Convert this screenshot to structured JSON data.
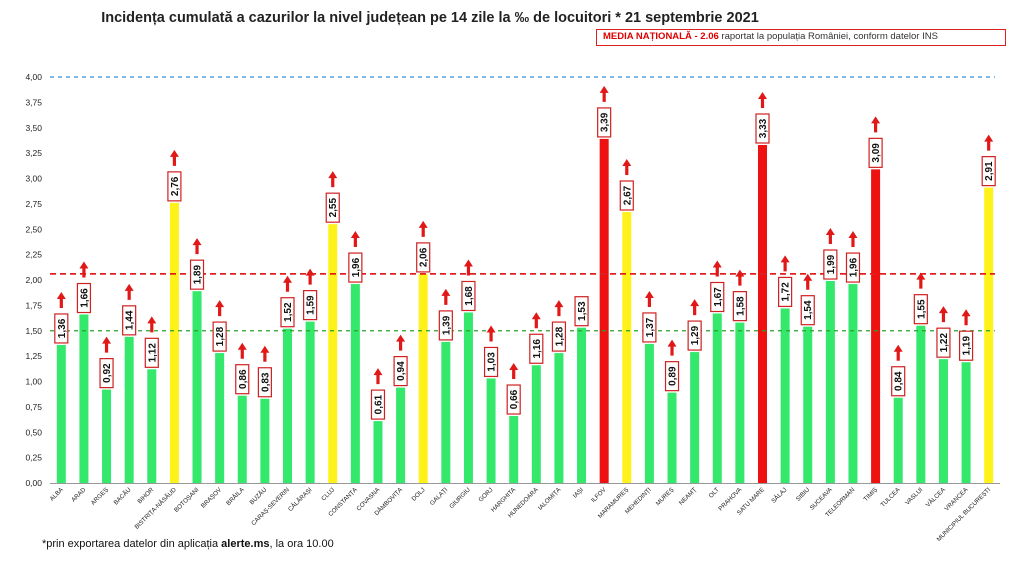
{
  "title": "Incidența cumulată a cazurilor la nivel județean pe 14 zile la ‰ de locuitori * 21 septembrie 2021",
  "national": {
    "label": "MEDIA NAȚIONALĂ",
    "value_text": "- 2.06",
    "description": "raportat la populația României, conform datelor INS"
  },
  "footnote": {
    "prefix": "*prin exportarea datelor din aplicația ",
    "source": "alerte.ms",
    "suffix": ", la ora 10.00"
  },
  "colors": {
    "green": "#33e86b",
    "yellow": "#fff21a",
    "red": "#ee1111",
    "arrow": "#e01818",
    "national_line": "#e02020",
    "threshold_line": "#28a428",
    "limit_line": "#3a8fd8"
  },
  "chart_data": {
    "type": "bar",
    "ylim": [
      0,
      4
    ],
    "yticks": [
      "0,00",
      "0,25",
      "0,50",
      "0,75",
      "1,00",
      "1,25",
      "1,50",
      "1,75",
      "2,00",
      "2,25",
      "2,50",
      "2,75",
      "3,00",
      "3,25",
      "3,50",
      "3,75",
      "4,00"
    ],
    "reference_lines": [
      {
        "value": 4.0,
        "color": "#3a8fd8"
      },
      {
        "value": 2.06,
        "color": "#e02020"
      },
      {
        "value": 1.5,
        "color": "#28a428"
      }
    ],
    "categories": [
      "ALBA",
      "ARAD",
      "ARGEȘ",
      "BACĂU",
      "BIHOR",
      "BISTRIȚA-NĂSĂUD",
      "BOTOȘANI",
      "BRAȘOV",
      "BRĂILA",
      "BUZĂU",
      "CARAȘ-SEVERIN",
      "CĂLĂRAȘI",
      "CLUJ",
      "CONSTANȚA",
      "COVASNA",
      "DÂMBOVIȚA",
      "DOLJ",
      "GALAȚI",
      "GIURGIU",
      "GORJ",
      "HARGHITA",
      "HUNEDOARA",
      "IALOMIȚA",
      "IAȘI",
      "ILFOV",
      "MARAMUREȘ",
      "MEHEDINȚI",
      "MUREȘ",
      "NEAMȚ",
      "OLT",
      "PRAHOVA",
      "SATU MARE",
      "SĂLAJ",
      "SIBIU",
      "SUCEAVA",
      "TELEORMAN",
      "TIMIȘ",
      "TULCEA",
      "VASLUI",
      "VÂLCEA",
      "VRANCEA",
      "MUNICIPIUL BUCUREȘTI"
    ],
    "values": [
      1.36,
      1.66,
      0.92,
      1.44,
      1.12,
      2.76,
      1.89,
      1.28,
      0.86,
      0.83,
      1.52,
      1.59,
      2.55,
      1.96,
      0.61,
      0.94,
      2.06,
      1.39,
      1.68,
      1.03,
      0.66,
      1.16,
      1.28,
      1.53,
      3.39,
      2.67,
      1.37,
      0.89,
      1.29,
      1.67,
      1.58,
      3.33,
      1.72,
      1.54,
      1.99,
      1.96,
      3.09,
      0.84,
      1.55,
      1.22,
      1.19,
      2.91
    ],
    "labels": [
      "1,36",
      "1,66",
      "0,92",
      "1,44",
      "1,12",
      "2,76",
      "1,89",
      "1,28",
      "0,86",
      "0,83",
      "1,52",
      "1,59",
      "2,55",
      "1,96",
      "0,61",
      "0,94",
      "2,06",
      "1,39",
      "1,68",
      "1,03",
      "0,66",
      "1,16",
      "1,28",
      "1,53",
      "3,39",
      "2,67",
      "1,37",
      "0,89",
      "1,29",
      "1,67",
      "1,58",
      "3,33",
      "1,72",
      "1,54",
      "1,99",
      "1,96",
      "3,09",
      "0,84",
      "1,55",
      "1,22",
      "1,19",
      "2,91"
    ],
    "bar_colors": [
      "green",
      "green",
      "green",
      "green",
      "green",
      "yellow",
      "green",
      "green",
      "green",
      "green",
      "green",
      "green",
      "yellow",
      "green",
      "green",
      "green",
      "yellow",
      "green",
      "green",
      "green",
      "green",
      "green",
      "green",
      "green",
      "red",
      "yellow",
      "green",
      "green",
      "green",
      "green",
      "green",
      "red",
      "green",
      "green",
      "green",
      "green",
      "red",
      "green",
      "green",
      "green",
      "green",
      "yellow"
    ],
    "arrows": [
      "up",
      "up",
      "up",
      "up",
      "up",
      "up",
      "up",
      "up",
      "up",
      "up",
      "up",
      "up",
      "up",
      "up",
      "up",
      "up",
      "up",
      "up",
      "up",
      "up",
      "up",
      "up",
      "up",
      "none",
      "up",
      "up",
      "up",
      "up",
      "up",
      "up",
      "up",
      "up",
      "up",
      "up",
      "up",
      "up",
      "up",
      "up",
      "up",
      "up",
      "up",
      "up"
    ]
  }
}
